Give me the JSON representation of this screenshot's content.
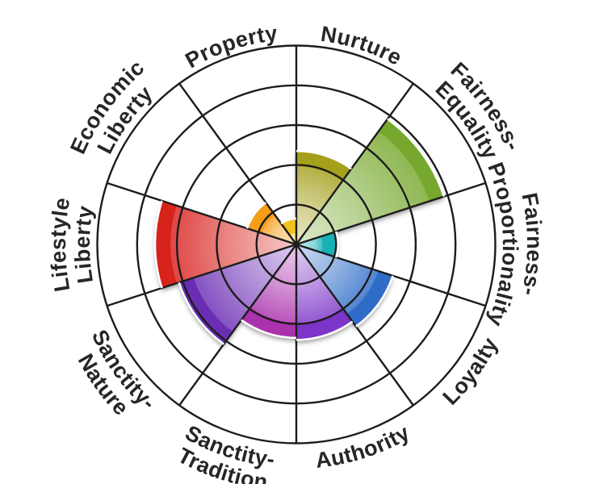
{
  "page": {
    "background_color": "#ffffff",
    "description": "Moral foundations polar wheel chart"
  },
  "chart_data": {
    "type": "polar_sector_chart",
    "title": "",
    "rings": 5,
    "value_max": 5,
    "grid_on": true,
    "grid_color": "#1c1c1c",
    "label_color": "#262626",
    "wedge_outline_color": "#ffffff",
    "categories": [
      "Nurture",
      "Fairness-Equality",
      "Fairness-Proportionality",
      "Loyalty",
      "Authority",
      "Sanctity-Tradition",
      "Sanctity-Nature",
      "Lifestyle Liberty",
      "Economic Liberty",
      "Property"
    ],
    "values": [
      2.35,
      3.9,
      1.05,
      2.55,
      2.4,
      2.35,
      3.1,
      3.55,
      1.3,
      0.65
    ],
    "colors": [
      "#a5a01e",
      "#76a82d",
      "#16b0b5",
      "#2e6cc8",
      "#7c35c8",
      "#ab31ad",
      "#6b2db5",
      "#d8201d",
      "#f59d18",
      "#f3c11c"
    ],
    "label_lines": [
      [
        "Nurture"
      ],
      [
        "Fairness-",
        "Equality"
      ],
      [
        "Fairness-",
        "Proportionality"
      ],
      [
        "Loyalty"
      ],
      [
        "Authority"
      ],
      [
        "Sanctity-",
        "Tradition"
      ],
      [
        "Sanctity-",
        "Nature"
      ],
      [
        "Lifestyle",
        "Liberty"
      ],
      [
        "Economic",
        "Liberty"
      ],
      [
        "Property"
      ]
    ]
  }
}
